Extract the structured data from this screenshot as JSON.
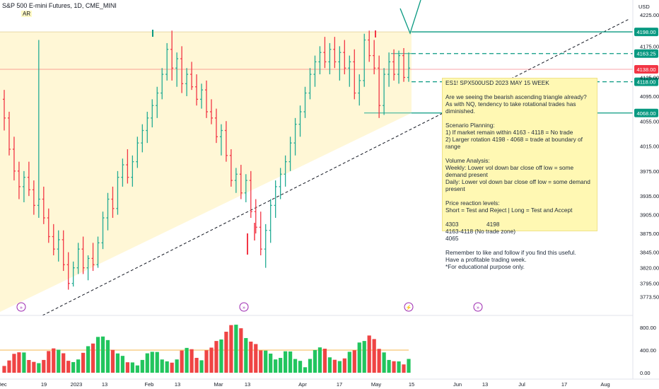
{
  "header": {
    "symbol_line": "S&P 500 E-mini Futures, 1D, CME_MINI",
    "indicator": "AR"
  },
  "note": {
    "title": "ES1! SPX500USD 2023 MAY 15 WEEK",
    "intro": [
      "Are we seeing the bearish ascending triangle already?",
      "As with NQ, tendency to take rotational trades has diminished."
    ],
    "scenario_title": "Scenario Planning:",
    "scenario": [
      "1) If market remain within 4163 - 4118 = No trade",
      "2) Larger rotation 4198 - 4068 = trade at boundary of range"
    ],
    "volume_title": "Volume Analysis:",
    "volume": [
      "Weekly: Lower vol down bar close off low = some demand present",
      "Daily: Lower vol down bar close off low = some demand",
      "present"
    ],
    "levels_title": "Price reaction levels:",
    "levels_legend": "Short = Test and Reject    |    Long = Test and Accept",
    "levels_values": [
      "4303",
      "4198",
      "4163-4118 (No trade zone)"
    ],
    "levels_extra": "4065",
    "closing": [
      "Remember to like and follow if you find this useful.",
      "Have a profitable trading week.",
      "*For educational purpose only."
    ]
  },
  "chart_data": {
    "type": "bar",
    "style": "ohlc",
    "symbol": "S&P 500 E-mini Futures",
    "interval": "1D",
    "price_axis": {
      "unit": "USD",
      "ylim": [
        3755,
        4240
      ],
      "ticks": [
        4225.0,
        4175.0,
        4125.0,
        4095.0,
        4055.0,
        4015.0,
        3975.0,
        3935.0,
        3905.0,
        3875.0,
        3845.0,
        3820.0,
        3795.0,
        3773.5
      ],
      "ticks_shown": [
        "4225.00",
        "4175.00",
        "4125.00",
        "4095.00",
        "4055.00",
        "4015.00",
        "3975.00",
        "3935.00",
        "3905.00",
        "3875.00",
        "3845.00",
        "3820.00",
        "3795.00",
        "3773.50"
      ]
    },
    "time_axis": {
      "labels": [
        "Dec",
        "19",
        "2023",
        "13",
        "Feb",
        "13",
        "Mar",
        "13",
        "Apr",
        "17",
        "May",
        "15",
        "Jun",
        "13",
        "Jul",
        "17",
        "Aug"
      ]
    },
    "levels": [
      {
        "label": "4198.00",
        "value": 4198,
        "style": "solid",
        "color": "#089981"
      },
      {
        "label": "4163.25",
        "value": 4163.25,
        "style": "dashed",
        "color": "#089981"
      },
      {
        "label": "4138.00",
        "value": 4138,
        "style": "solid",
        "color": "#f23645"
      },
      {
        "label": "4118.00",
        "value": 4118,
        "style": "dashed",
        "color": "#089981"
      },
      {
        "label": "4068.00",
        "value": 4068,
        "style": "solid",
        "color": "#089981"
      }
    ],
    "bars": [
      {
        "o": 4090,
        "h": 4105,
        "l": 4040,
        "c": 4060
      },
      {
        "o": 4060,
        "h": 4070,
        "l": 4000,
        "c": 4010
      },
      {
        "o": 4010,
        "h": 4030,
        "l": 3960,
        "c": 3975
      },
      {
        "o": 3975,
        "h": 3990,
        "l": 3930,
        "c": 3950
      },
      {
        "o": 3950,
        "h": 3975,
        "l": 3925,
        "c": 3965
      },
      {
        "o": 3965,
        "h": 3990,
        "l": 3935,
        "c": 3945
      },
      {
        "o": 3945,
        "h": 3960,
        "l": 3905,
        "c": 3920
      },
      {
        "o": 3920,
        "h": 4185,
        "l": 3900,
        "c": 3930
      },
      {
        "o": 3930,
        "h": 3950,
        "l": 3890,
        "c": 3900
      },
      {
        "o": 3900,
        "h": 3915,
        "l": 3860,
        "c": 3870
      },
      {
        "o": 3870,
        "h": 3890,
        "l": 3840,
        "c": 3850
      },
      {
        "o": 3850,
        "h": 3880,
        "l": 3830,
        "c": 3865
      },
      {
        "o": 3865,
        "h": 3880,
        "l": 3815,
        "c": 3825
      },
      {
        "o": 3825,
        "h": 3845,
        "l": 3785,
        "c": 3795
      },
      {
        "o": 3795,
        "h": 3830,
        "l": 3790,
        "c": 3820
      },
      {
        "o": 3820,
        "h": 3860,
        "l": 3810,
        "c": 3850
      },
      {
        "o": 3850,
        "h": 3870,
        "l": 3810,
        "c": 3820
      },
      {
        "o": 3820,
        "h": 3840,
        "l": 3800,
        "c": 3835
      },
      {
        "o": 3835,
        "h": 3860,
        "l": 3815,
        "c": 3825
      },
      {
        "o": 3825,
        "h": 3870,
        "l": 3820,
        "c": 3860
      },
      {
        "o": 3860,
        "h": 3910,
        "l": 3850,
        "c": 3900
      },
      {
        "o": 3900,
        "h": 3940,
        "l": 3880,
        "c": 3930
      },
      {
        "o": 3930,
        "h": 3950,
        "l": 3900,
        "c": 3915
      },
      {
        "o": 3915,
        "h": 3975,
        "l": 3905,
        "c": 3965
      },
      {
        "o": 3965,
        "h": 3995,
        "l": 3950,
        "c": 3985
      },
      {
        "o": 3985,
        "h": 4010,
        "l": 3955,
        "c": 3965
      },
      {
        "o": 3965,
        "h": 4000,
        "l": 3950,
        "c": 3990
      },
      {
        "o": 3990,
        "h": 4030,
        "l": 3980,
        "c": 4020
      },
      {
        "o": 4020,
        "h": 4050,
        "l": 4005,
        "c": 4040
      },
      {
        "o": 4040,
        "h": 4070,
        "l": 4020,
        "c": 4060
      },
      {
        "o": 4060,
        "h": 4090,
        "l": 4045,
        "c": 4080
      },
      {
        "o": 4080,
        "h": 4110,
        "l": 4060,
        "c": 4100
      },
      {
        "o": 4100,
        "h": 4140,
        "l": 4090,
        "c": 4130
      },
      {
        "o": 4130,
        "h": 4180,
        "l": 4120,
        "c": 4170
      },
      {
        "o": 4170,
        "h": 4200,
        "l": 4120,
        "c": 4140
      },
      {
        "o": 4140,
        "h": 4165,
        "l": 4110,
        "c": 4155
      },
      {
        "o": 4155,
        "h": 4175,
        "l": 4100,
        "c": 4115
      },
      {
        "o": 4115,
        "h": 4140,
        "l": 4095,
        "c": 4130
      },
      {
        "o": 4130,
        "h": 4150,
        "l": 4105,
        "c": 4110
      },
      {
        "o": 4110,
        "h": 4130,
        "l": 4080,
        "c": 4090
      },
      {
        "o": 4090,
        "h": 4115,
        "l": 4075,
        "c": 4105
      },
      {
        "o": 4105,
        "h": 4120,
        "l": 4060,
        "c": 4070
      },
      {
        "o": 4070,
        "h": 4090,
        "l": 4050,
        "c": 4060
      },
      {
        "o": 4060,
        "h": 4075,
        "l": 4020,
        "c": 4030
      },
      {
        "o": 4030,
        "h": 4050,
        "l": 4000,
        "c": 4040
      },
      {
        "o": 4040,
        "h": 4055,
        "l": 3990,
        "c": 4000
      },
      {
        "o": 4000,
        "h": 4010,
        "l": 3950,
        "c": 3960
      },
      {
        "o": 3960,
        "h": 3980,
        "l": 3940,
        "c": 3970
      },
      {
        "o": 3970,
        "h": 3985,
        "l": 3930,
        "c": 3940
      },
      {
        "o": 3940,
        "h": 3970,
        "l": 3925,
        "c": 3960
      },
      {
        "o": 3960,
        "h": 3975,
        "l": 3900,
        "c": 3910
      },
      {
        "o": 3910,
        "h": 3930,
        "l": 3875,
        "c": 3885
      },
      {
        "o": 3885,
        "h": 3910,
        "l": 3840,
        "c": 3850
      },
      {
        "o": 3850,
        "h": 3890,
        "l": 3820,
        "c": 3880
      },
      {
        "o": 3880,
        "h": 3930,
        "l": 3860,
        "c": 3920
      },
      {
        "o": 3920,
        "h": 3960,
        "l": 3900,
        "c": 3950
      },
      {
        "o": 3950,
        "h": 3980,
        "l": 3930,
        "c": 3970
      },
      {
        "o": 3970,
        "h": 4000,
        "l": 3950,
        "c": 3990
      },
      {
        "o": 3990,
        "h": 4030,
        "l": 3975,
        "c": 4020
      },
      {
        "o": 4020,
        "h": 4060,
        "l": 4000,
        "c": 4050
      },
      {
        "o": 4050,
        "h": 4080,
        "l": 4030,
        "c": 4070
      },
      {
        "o": 4070,
        "h": 4110,
        "l": 4060,
        "c": 4100
      },
      {
        "o": 4100,
        "h": 4140,
        "l": 4090,
        "c": 4130
      },
      {
        "o": 4130,
        "h": 4160,
        "l": 4110,
        "c": 4150
      },
      {
        "o": 4150,
        "h": 4175,
        "l": 4130,
        "c": 4165
      },
      {
        "o": 4165,
        "h": 4190,
        "l": 4140,
        "c": 4150
      },
      {
        "o": 4150,
        "h": 4180,
        "l": 4130,
        "c": 4170
      },
      {
        "o": 4170,
        "h": 4190,
        "l": 4140,
        "c": 4150
      },
      {
        "o": 4150,
        "h": 4175,
        "l": 4120,
        "c": 4165
      },
      {
        "o": 4165,
        "h": 4185,
        "l": 4130,
        "c": 4140
      },
      {
        "o": 4140,
        "h": 4160,
        "l": 4110,
        "c": 4150
      },
      {
        "o": 4150,
        "h": 4170,
        "l": 4090,
        "c": 4100
      },
      {
        "o": 4100,
        "h": 4130,
        "l": 4080,
        "c": 4120
      },
      {
        "o": 4120,
        "h": 4195,
        "l": 4110,
        "c": 4185
      },
      {
        "o": 4185,
        "h": 4200,
        "l": 4150,
        "c": 4160
      },
      {
        "o": 4160,
        "h": 4185,
        "l": 4130,
        "c": 4140
      },
      {
        "o": 4140,
        "h": 4160,
        "l": 4060,
        "c": 4080
      },
      {
        "o": 4080,
        "h": 4140,
        "l": 4065,
        "c": 4130
      },
      {
        "o": 4130,
        "h": 4165,
        "l": 4110,
        "c": 4150
      },
      {
        "o": 4150,
        "h": 4170,
        "l": 4120,
        "c": 4130
      },
      {
        "o": 4130,
        "h": 4168,
        "l": 4115,
        "c": 4160
      },
      {
        "o": 4160,
        "h": 4172,
        "l": 4118,
        "c": 4125
      },
      {
        "o": 4125,
        "h": 4165,
        "l": 4118,
        "c": 4140
      }
    ],
    "volume": {
      "ticks": [
        "800.00",
        "400.00",
        "0.00"
      ],
      "ylim": [
        0,
        900
      ],
      "average_line": 400
    }
  }
}
